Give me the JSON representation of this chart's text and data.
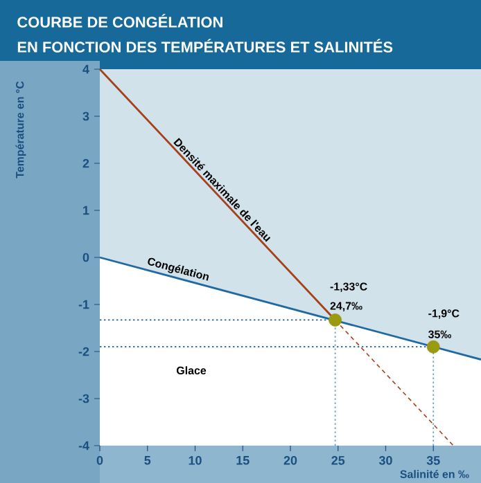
{
  "chart_data": {
    "type": "line",
    "title": "COURBE DE CONGÉLATION",
    "subtitle": "EN FONCTION DES TEMPÉRATURES ET SALINITÉS",
    "xlabel": "Salinité en ‰",
    "ylabel": "Température en °C",
    "xlim": [
      0,
      40
    ],
    "xticks": [
      0,
      5,
      10,
      15,
      20,
      25,
      30,
      35
    ],
    "ylim": [
      -4,
      4
    ],
    "yticks": [
      -4,
      -3,
      -2,
      -1,
      0,
      1,
      2,
      3,
      4
    ],
    "grid": false,
    "series": [
      {
        "name": "Densité maximale de l'eau",
        "color": "#a3411c",
        "x": [
          0,
          24.7
        ],
        "values": [
          4,
          -1.33
        ],
        "line_style": "solid"
      },
      {
        "color": "#a3411c",
        "x": [
          24.7,
          37.1
        ],
        "values": [
          -1.33,
          -4
        ],
        "line_style": "dashed"
      },
      {
        "name": "Congélation",
        "color": "#1f6aa0",
        "x": [
          0,
          40
        ],
        "values": [
          0,
          -2.17
        ],
        "line_style": "solid"
      },
      {
        "type": "scatter",
        "color": "#9a9a12",
        "x": [
          24.7,
          35
        ],
        "values": [
          -1.33,
          -1.9
        ]
      }
    ],
    "ref_lines": [
      {
        "axis": "x",
        "value": 24.7,
        "color": "#6aa3cc",
        "line_style": "dotted"
      },
      {
        "axis": "y",
        "value": -1.33,
        "color": "#1f5f95",
        "line_style": "dotted"
      },
      {
        "axis": "x",
        "value": 35,
        "color": "#6aa3cc",
        "line_style": "dotted"
      },
      {
        "axis": "y",
        "value": -1.9,
        "color": "#1f5f95",
        "line_style": "dotted"
      }
    ],
    "annotations": [
      "-1,33°C",
      "24,7‰",
      "-1,9°C",
      "35‰",
      "Glace"
    ]
  }
}
